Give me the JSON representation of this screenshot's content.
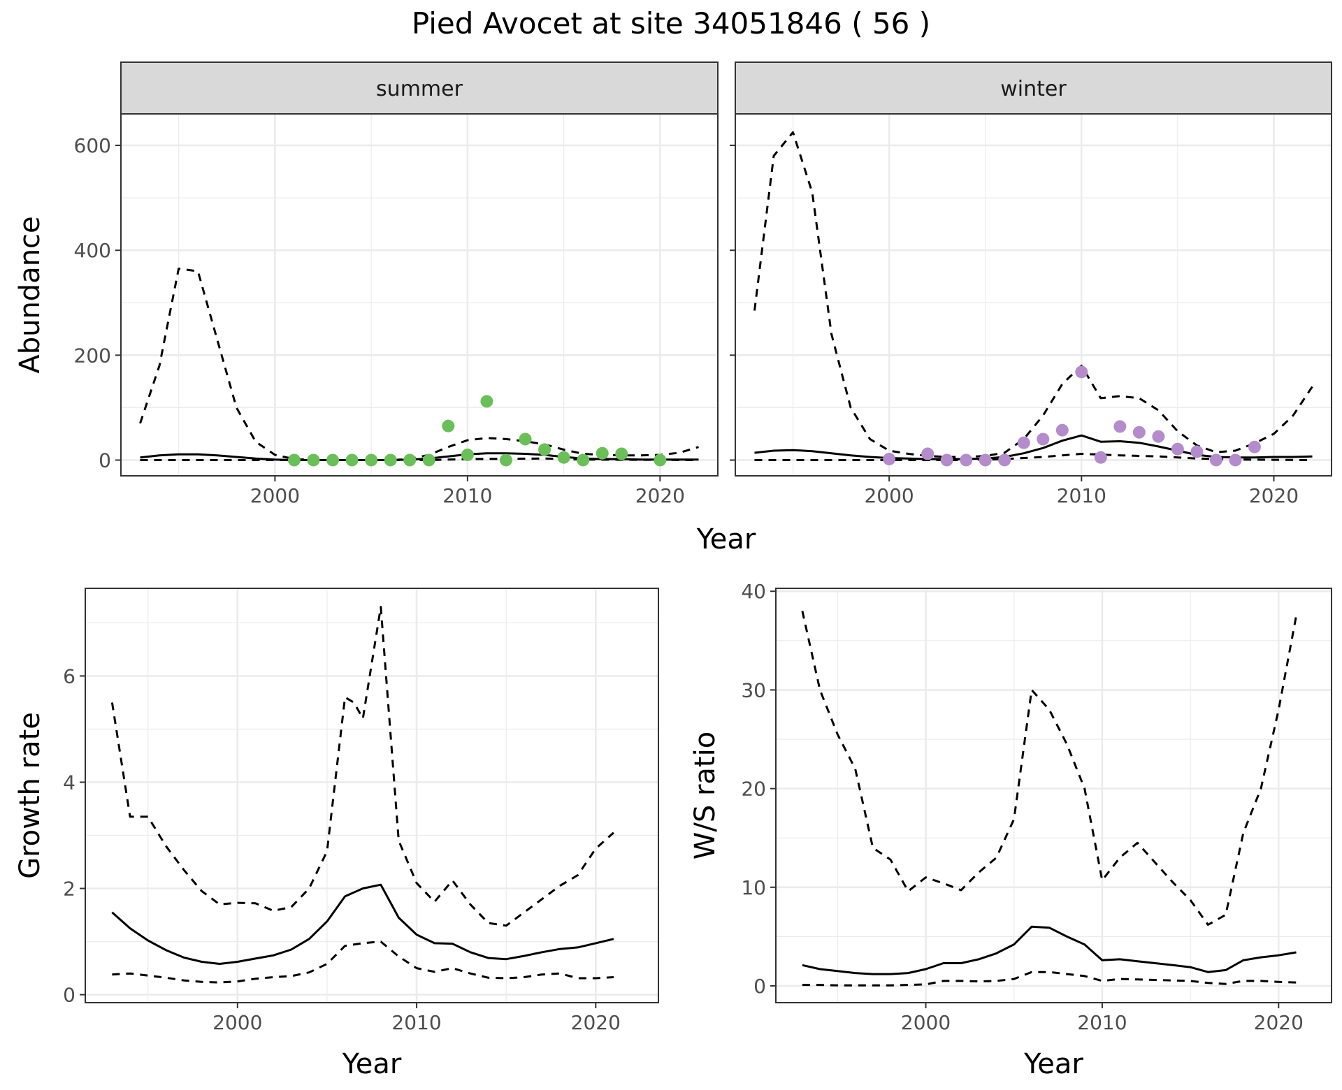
{
  "title": "Pied Avocet at site 34051846 ( 56 )",
  "colors": {
    "summer_points": "#6BBF59",
    "winter_points": "#B48CCB",
    "line": "#000000",
    "grid_major": "#EBEBEB",
    "strip_fill": "#D9D9D9"
  },
  "chart_data": [
    {
      "type": "line",
      "layout": "facet-wrap",
      "xlabel": "Year",
      "ylabel": "Abundance",
      "xlim": [
        1992,
        2023
      ],
      "ylim": [
        -30,
        660
      ],
      "x_ticks": [
        2000,
        2010,
        2020
      ],
      "y_ticks": [
        0,
        200,
        400,
        600
      ],
      "grid": true,
      "facets": [
        {
          "strip": "summer",
          "points": {
            "x": [
              2001,
              2002,
              2003,
              2004,
              2005,
              2006,
              2007,
              2008,
              2009,
              2010,
              2011,
              2012,
              2013,
              2014,
              2015,
              2016,
              2017,
              2018,
              2020
            ],
            "y": [
              0,
              0,
              0,
              0,
              0,
              0,
              0,
              0,
              65,
              10,
              112,
              0,
              40,
              20,
              5,
              0,
              13,
              12,
              0
            ]
          },
          "series": [
            {
              "style": "solid",
              "x": [
                1993,
                1994,
                1995,
                1996,
                1997,
                1998,
                1999,
                2000,
                2001,
                2002,
                2003,
                2004,
                2005,
                2006,
                2007,
                2008,
                2009,
                2010,
                2011,
                2012,
                2013,
                2014,
                2015,
                2016,
                2017,
                2018,
                2019,
                2020,
                2021,
                2022
              ],
              "y": [
                5,
                9,
                11,
                11,
                9,
                6,
                3,
                1,
                0,
                0,
                0,
                0,
                0,
                0,
                1,
                3,
                7,
                11,
                13,
                13,
                12,
                10,
                6,
                3,
                2,
                2,
                1,
                1,
                1,
                1
              ]
            },
            {
              "style": "dashed",
              "x": [
                1993,
                1994,
                1995,
                1996,
                1997,
                1998,
                1999,
                2000,
                2001,
                2002,
                2003,
                2004,
                2005,
                2006,
                2007,
                2008,
                2009,
                2010,
                2011,
                2012,
                2013,
                2014,
                2015,
                2016,
                2017,
                2018,
                2019,
                2020,
                2021,
                2022
              ],
              "y": [
                70,
                180,
                365,
                360,
                230,
                100,
                35,
                10,
                2,
                0,
                0,
                0,
                0,
                0,
                2,
                10,
                25,
                38,
                42,
                40,
                36,
                30,
                20,
                12,
                10,
                9,
                9,
                10,
                14,
                25
              ]
            },
            {
              "style": "dashed",
              "x": [
                1993,
                2008,
                2010,
                2014,
                2016,
                2022
              ],
              "y": [
                0,
                0,
                2,
                3,
                1,
                0
              ]
            }
          ]
        },
        {
          "strip": "winter",
          "points": {
            "x": [
              2000,
              2002,
              2003,
              2004,
              2005,
              2006,
              2007,
              2008,
              2009,
              2010,
              2011,
              2012,
              2013,
              2014,
              2015,
              2016,
              2017,
              2018,
              2019
            ],
            "y": [
              2,
              12,
              0,
              0,
              0,
              0,
              33,
              40,
              57,
              168,
              5,
              64,
              53,
              45,
              21,
              16,
              0,
              0,
              25
            ]
          },
          "series": [
            {
              "style": "solid",
              "x": [
                1993,
                1994,
                1995,
                1996,
                1997,
                1998,
                1999,
                2000,
                2001,
                2002,
                2003,
                2004,
                2005,
                2006,
                2007,
                2008,
                2009,
                2010,
                2011,
                2012,
                2013,
                2014,
                2015,
                2016,
                2017,
                2018,
                2019,
                2020,
                2021,
                2022
              ],
              "y": [
                14,
                18,
                19,
                17,
                13,
                9,
                6,
                4,
                3,
                2,
                2,
                2,
                3,
                6,
                13,
                23,
                37,
                47,
                35,
                36,
                33,
                26,
                18,
                10,
                6,
                5,
                5,
                6,
                6,
                7
              ]
            },
            {
              "style": "dashed",
              "x": [
                1993,
                1994,
                1995,
                1996,
                1997,
                1998,
                1999,
                2000,
                2001,
                2002,
                2003,
                2004,
                2005,
                2006,
                2007,
                2008,
                2009,
                2010,
                2011,
                2012,
                2013,
                2014,
                2015,
                2016,
                2017,
                2018,
                2019,
                2020,
                2021,
                2022
              ],
              "y": [
                285,
                580,
                625,
                510,
                240,
                100,
                40,
                18,
                12,
                8,
                6,
                6,
                8,
                14,
                40,
                85,
                145,
                180,
                118,
                122,
                118,
                95,
                55,
                28,
                15,
                18,
                32,
                50,
                85,
                140
              ]
            },
            {
              "style": "dashed",
              "x": [
                1993,
                2004,
                2006,
                2008,
                2010,
                2012,
                2014,
                2016,
                2018,
                2022
              ],
              "y": [
                0,
                0,
                2,
                6,
                12,
                9,
                7,
                3,
                1,
                0
              ]
            }
          ]
        }
      ]
    },
    {
      "type": "line",
      "xlabel": "Year",
      "ylabel": "Growth rate",
      "xlim": [
        1991.5,
        2023.5
      ],
      "ylim": [
        -0.15,
        7.65
      ],
      "x_ticks": [
        2000,
        2010,
        2020
      ],
      "y_ticks": [
        0,
        2,
        4,
        6
      ],
      "grid": true,
      "series": [
        {
          "style": "solid",
          "x": [
            1993,
            1994,
            1995,
            1996,
            1997,
            1998,
            1999,
            2000,
            2001,
            2002,
            2003,
            2004,
            2005,
            2006,
            2007,
            2008,
            2009,
            2010,
            2011,
            2012,
            2013,
            2014,
            2015,
            2016,
            2017,
            2018,
            2019,
            2020,
            2021
          ],
          "y": [
            1.55,
            1.25,
            1.02,
            0.84,
            0.7,
            0.62,
            0.58,
            0.62,
            0.68,
            0.74,
            0.85,
            1.05,
            1.38,
            1.85,
            2.0,
            2.07,
            1.45,
            1.13,
            0.97,
            0.96,
            0.8,
            0.69,
            0.67,
            0.73,
            0.8,
            0.86,
            0.89,
            0.97,
            1.05
          ]
        },
        {
          "style": "dashed",
          "x": [
            1993,
            1994,
            1995,
            1996,
            1997,
            1998,
            1999,
            2000,
            2001,
            2002,
            2003,
            2004,
            2005,
            2006,
            2006.5,
            2007,
            2008,
            2009,
            2010,
            2011,
            2012,
            2013,
            2014,
            2015,
            2016,
            2017,
            2018,
            2019,
            2020,
            2021
          ],
          "y": [
            5.5,
            3.35,
            3.35,
            2.8,
            2.35,
            1.95,
            1.7,
            1.73,
            1.72,
            1.58,
            1.65,
            2.0,
            2.7,
            5.6,
            5.5,
            5.2,
            7.3,
            2.9,
            2.1,
            1.75,
            2.15,
            1.7,
            1.35,
            1.3,
            1.55,
            1.8,
            2.05,
            2.25,
            2.75,
            3.05
          ]
        },
        {
          "style": "dashed",
          "x": [
            1993,
            1994,
            1995,
            1996,
            1997,
            1998,
            1999,
            2000,
            2001,
            2002,
            2003,
            2004,
            2005,
            2006,
            2007,
            2008,
            2009,
            2010,
            2011,
            2012,
            2013,
            2014,
            2015,
            2016,
            2017,
            2018,
            2019,
            2020,
            2021
          ],
          "y": [
            0.38,
            0.4,
            0.36,
            0.32,
            0.27,
            0.24,
            0.23,
            0.25,
            0.3,
            0.33,
            0.35,
            0.42,
            0.58,
            0.92,
            0.97,
            1.0,
            0.72,
            0.5,
            0.43,
            0.5,
            0.4,
            0.32,
            0.31,
            0.33,
            0.38,
            0.4,
            0.31,
            0.31,
            0.33
          ]
        }
      ]
    },
    {
      "type": "line",
      "xlabel": "Year",
      "ylabel": "W/S ratio",
      "xlim": [
        1991.5,
        2023
      ],
      "ylim": [
        -1.7,
        40.3
      ],
      "x_ticks": [
        2000,
        2010,
        2020
      ],
      "y_ticks": [
        0,
        10,
        20,
        30,
        40
      ],
      "grid": true,
      "series": [
        {
          "style": "solid",
          "x": [
            1993,
            1994,
            1995,
            1996,
            1997,
            1998,
            1999,
            2000,
            2001,
            2002,
            2003,
            2004,
            2005,
            2006,
            2007,
            2008,
            2009,
            2010,
            2011,
            2012,
            2013,
            2014,
            2015,
            2016,
            2017,
            2018,
            2019,
            2020,
            2021
          ],
          "y": [
            2.1,
            1.7,
            1.5,
            1.3,
            1.2,
            1.2,
            1.3,
            1.7,
            2.3,
            2.3,
            2.7,
            3.3,
            4.2,
            6.0,
            5.9,
            5.0,
            4.2,
            2.6,
            2.7,
            2.5,
            2.3,
            2.1,
            1.9,
            1.4,
            1.6,
            2.6,
            2.9,
            3.1,
            3.4
          ]
        },
        {
          "style": "dashed",
          "x": [
            1993,
            1994,
            1995,
            1996,
            1997,
            1998,
            1999,
            2000,
            2001,
            2002,
            2003,
            2004,
            2005,
            2006,
            2007,
            2008,
            2009,
            2010,
            2011,
            2012,
            2013,
            2014,
            2015,
            2016,
            2017,
            2018,
            2019,
            2020,
            2021
          ],
          "y": [
            38.0,
            30.0,
            25.5,
            22.0,
            14.0,
            12.8,
            9.6,
            11.0,
            10.4,
            9.7,
            11.5,
            13.0,
            16.9,
            30.0,
            28.0,
            24.5,
            20.0,
            10.7,
            13.0,
            14.5,
            12.5,
            10.5,
            8.7,
            6.2,
            7.2,
            15.5,
            20.0,
            28.0,
            37.5
          ]
        },
        {
          "style": "dashed",
          "x": [
            1993,
            1994,
            1995,
            1996,
            1997,
            1998,
            1999,
            2000,
            2001,
            2002,
            2003,
            2004,
            2005,
            2006,
            2007,
            2008,
            2009,
            2010,
            2011,
            2012,
            2013,
            2014,
            2015,
            2016,
            2017,
            2018,
            2019,
            2020,
            2021
          ],
          "y": [
            0.1,
            0.1,
            0.05,
            0.05,
            0.05,
            0.05,
            0.1,
            0.15,
            0.5,
            0.5,
            0.45,
            0.5,
            0.7,
            1.4,
            1.4,
            1.2,
            1.0,
            0.5,
            0.7,
            0.65,
            0.6,
            0.55,
            0.5,
            0.3,
            0.2,
            0.5,
            0.5,
            0.4,
            0.35
          ]
        }
      ]
    }
  ]
}
